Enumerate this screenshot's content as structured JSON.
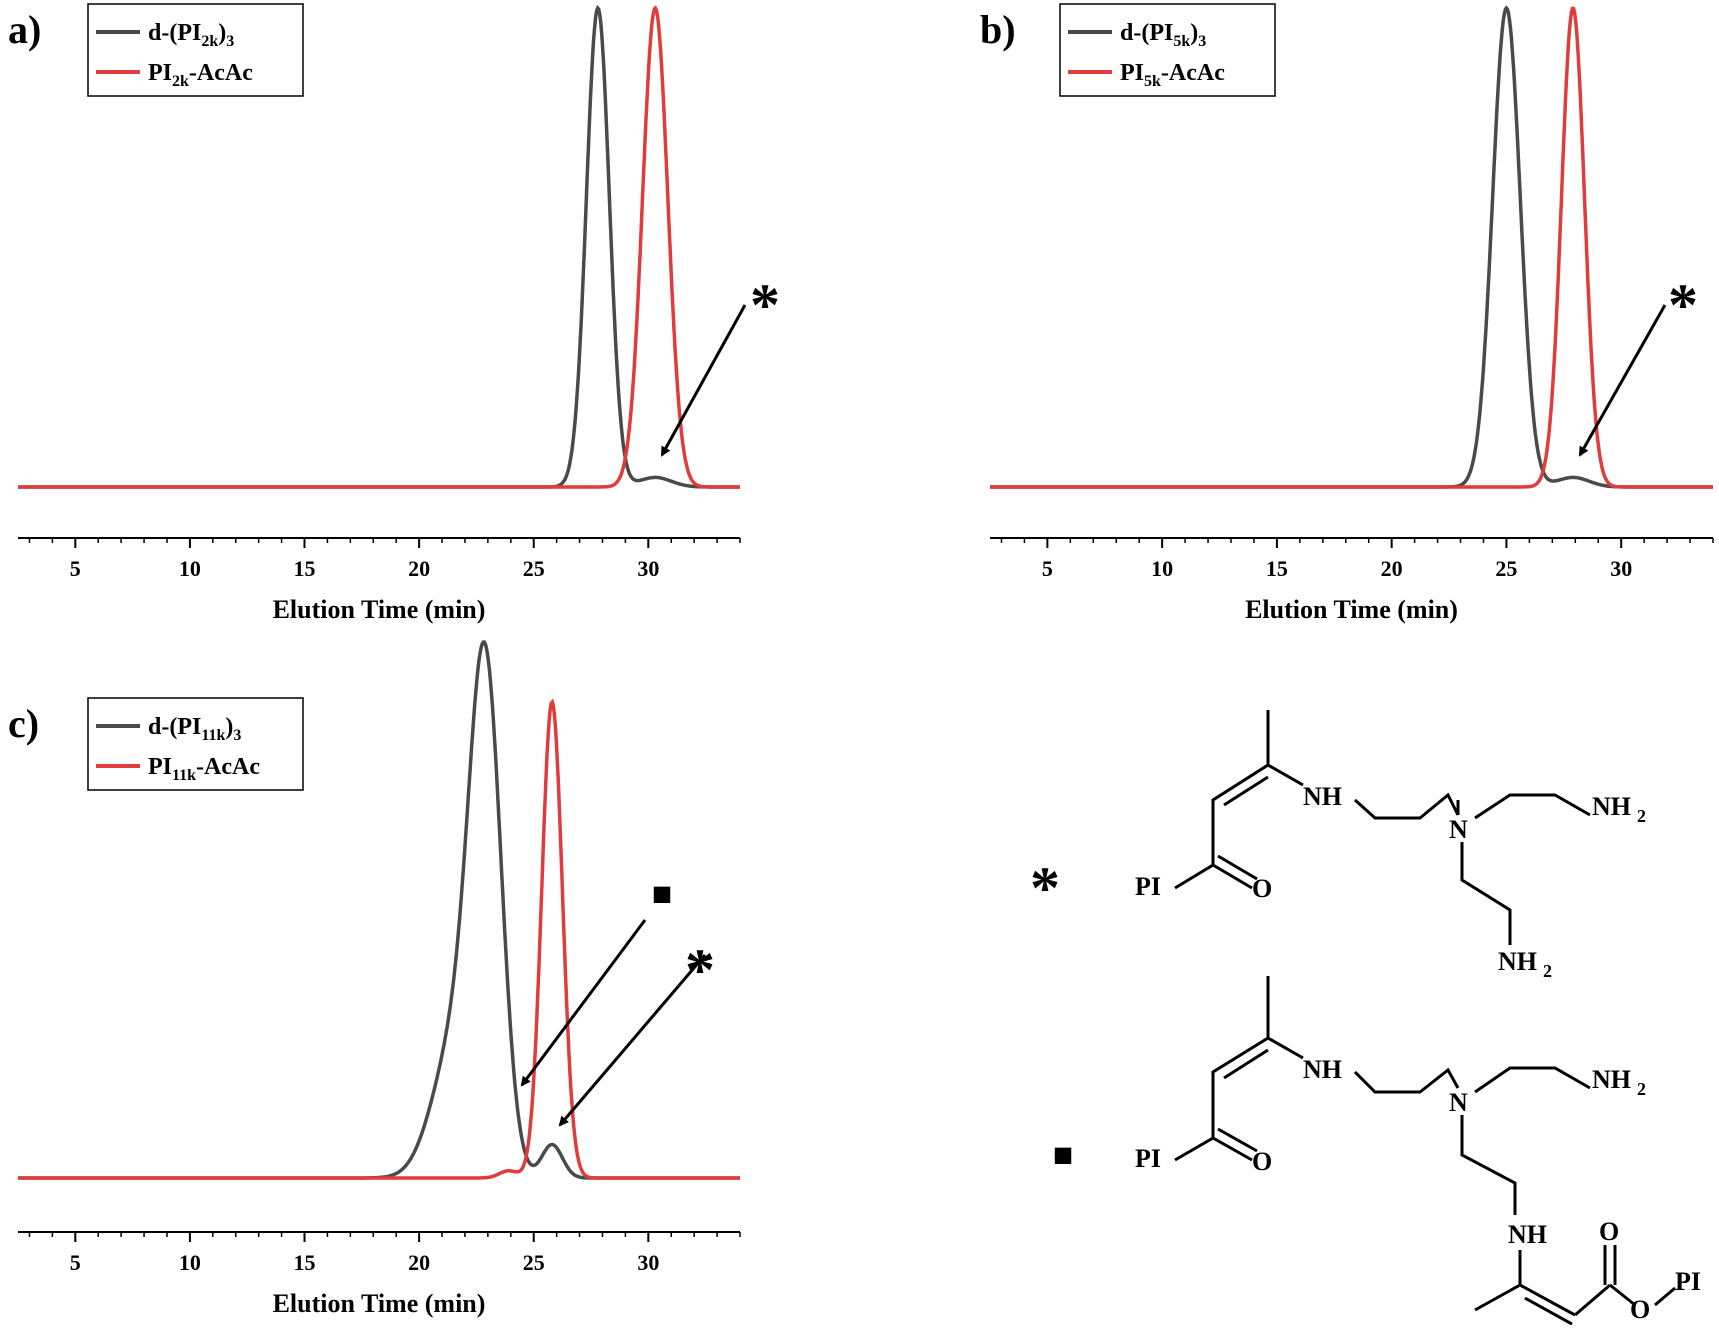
{
  "colors": {
    "black_series": "#4a4a4a",
    "red_series": "#e03c3c",
    "axis": "#000000"
  },
  "chart_data": [
    {
      "panel_label": "a)",
      "type": "line",
      "xlabel": "Elution Time (min)",
      "ylabel": "",
      "xlim": [
        2.5,
        34
      ],
      "xticks": [
        5,
        10,
        15,
        20,
        25,
        30
      ],
      "legend": {
        "placement": "top-left"
      },
      "annotations": [
        {
          "text": "*",
          "x": 30.3
        }
      ],
      "series": [
        {
          "name": "d-(PI2k)3",
          "legend_main": "d-(PI",
          "legend_sub": "2k",
          "legend_end": ")",
          "legend_sub2": "3",
          "color": "#4a4a4a",
          "peaks": [
            {
              "center": 27.8,
              "height": 1.0,
              "width": 0.5
            },
            {
              "center": 30.3,
              "height": 0.02,
              "width": 0.7
            }
          ]
        },
        {
          "name": "PI2k-AcAc",
          "legend_main": "PI",
          "legend_sub": "2k",
          "legend_end": "-AcAc",
          "legend_sub2": "",
          "color": "#e03c3c",
          "peaks": [
            {
              "center": 30.3,
              "height": 1.0,
              "width": 0.55
            }
          ]
        }
      ]
    },
    {
      "panel_label": "b)",
      "type": "line",
      "xlabel": "Elution Time (min)",
      "ylabel": "",
      "xlim": [
        2.5,
        34
      ],
      "xticks": [
        5,
        10,
        15,
        20,
        25,
        30
      ],
      "legend": {
        "placement": "top-left"
      },
      "annotations": [
        {
          "text": "*",
          "x": 27.9
        }
      ],
      "series": [
        {
          "name": "d-(PI5k)3",
          "legend_main": "d-(PI",
          "legend_sub": "5k",
          "legend_end": ")",
          "legend_sub2": "3",
          "color": "#4a4a4a",
          "peaks": [
            {
              "center": 25.0,
              "height": 1.0,
              "width": 0.6
            },
            {
              "center": 27.9,
              "height": 0.02,
              "width": 0.7
            }
          ]
        },
        {
          "name": "PI5k-AcAc",
          "legend_main": "PI",
          "legend_sub": "5k",
          "legend_end": "-AcAc",
          "legend_sub2": "",
          "color": "#e03c3c",
          "peaks": [
            {
              "center": 27.9,
              "height": 1.0,
              "width": 0.5
            }
          ]
        }
      ]
    },
    {
      "panel_label": "c)",
      "type": "line",
      "xlabel": "Elution Time (min)",
      "ylabel": "",
      "xlim": [
        2.5,
        34
      ],
      "xticks": [
        5,
        10,
        15,
        20,
        25,
        30
      ],
      "legend": {
        "placement": "top-left"
      },
      "annotations": [
        {
          "text": "■",
          "x": 24.5
        },
        {
          "text": "*",
          "x": 25.8
        }
      ],
      "series": [
        {
          "name": "d-(PI11k)3",
          "legend_main": "d-(PI",
          "legend_sub": "11k",
          "legend_end": ")",
          "legend_sub2": "3",
          "color": "#4a4a4a",
          "peaks": [
            {
              "center": 22.9,
              "height": 1.0,
              "width": 0.7
            },
            {
              "center": 21.6,
              "height": 0.28,
              "width": 1.0
            },
            {
              "center": 25.8,
              "height": 0.07,
              "width": 0.45
            }
          ]
        },
        {
          "name": "PI11k-AcAc",
          "legend_main": "PI",
          "legend_sub": "11k",
          "legend_end": "-AcAc",
          "legend_sub2": "",
          "color": "#e03c3c",
          "peaks": [
            {
              "center": 25.8,
              "height": 1.0,
              "width": 0.45
            },
            {
              "center": 23.9,
              "height": 0.015,
              "width": 0.4
            }
          ]
        }
      ]
    }
  ],
  "structures": {
    "markers": [
      "*",
      "■"
    ],
    "labels": {
      "pi": "PI",
      "o": "O",
      "nh": "NH",
      "n": "N",
      "nh2": "NH",
      "nh2_sub": "2"
    }
  }
}
